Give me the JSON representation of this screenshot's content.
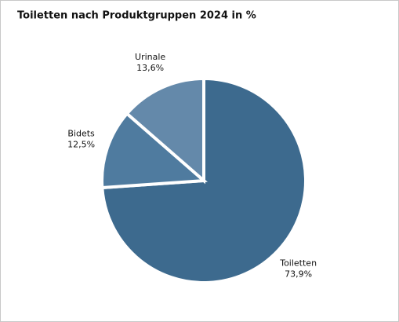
{
  "chart_data": {
    "type": "pie",
    "title": "Toiletten nach Produktgruppen 2024 in %",
    "categories": [
      "Toiletten",
      "Bidets",
      "Urinale"
    ],
    "values": [
      73.9,
      12.5,
      13.6
    ],
    "value_labels": [
      "73,9%",
      "12,5%",
      "13,6%"
    ],
    "colors": [
      "#3d6a8e",
      "#4f7b9f",
      "#6489aa"
    ]
  }
}
